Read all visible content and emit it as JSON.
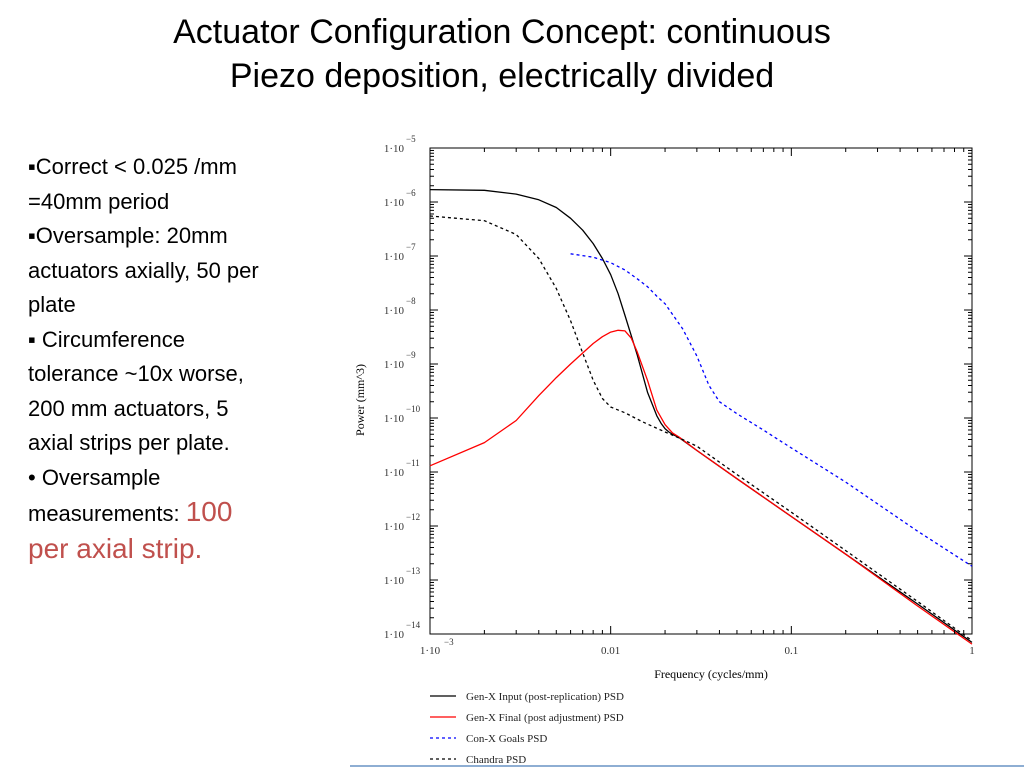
{
  "slide": {
    "title_line1": "Actuator Configuration Concept: continuous",
    "title_line2": "Piezo deposition, electrically divided",
    "bullets": {
      "b1_line1": "▪Correct < 0.025 /mm",
      "b1_line2": "=40mm period",
      "b2_line1": "▪Oversample: 20mm",
      "b2_line2": "actuators axially, 50 per",
      "b2_line3": "plate",
      "b3_line1": "▪ Circumference",
      "b3_line2": "tolerance ~10x worse,",
      "b3_line3": "200 mm actuators, 5",
      "b3_line4": "axial strips per plate.",
      "b4_line1": "• Oversample",
      "b4_line2_prefix": "measurements: ",
      "b4_line2_highlight": "100",
      "b4_line3": "per axial strip."
    },
    "highlight_color": "#c0504d"
  },
  "chart_data": {
    "type": "line",
    "x_scale": "log",
    "y_scale": "log",
    "xlim": [
      0.001,
      1
    ],
    "ylim": [
      1e-14,
      1e-05
    ],
    "xlabel": "Frequency (cycles/mm)",
    "ylabel": "Power (mm^3)",
    "x_ticks": [
      {
        "base": "1·10",
        "exp": "−3"
      },
      {
        "label": "0.01"
      },
      {
        "label": "0.1"
      },
      {
        "label": "1"
      }
    ],
    "y_ticks": [
      {
        "base": "1·10",
        "exp": "−5"
      },
      {
        "base": "1·10",
        "exp": "−6"
      },
      {
        "base": "1·10",
        "exp": "−7"
      },
      {
        "base": "1·10",
        "exp": "−8"
      },
      {
        "base": "1·10",
        "exp": "−9"
      },
      {
        "base": "1·10",
        "exp": "−10"
      },
      {
        "base": "1·10",
        "exp": "−11"
      },
      {
        "base": "1·10",
        "exp": "−12"
      },
      {
        "base": "1·10",
        "exp": "−13"
      },
      {
        "base": "1·10",
        "exp": "−14"
      }
    ],
    "series": [
      {
        "name": "Gen-X Input (post-replication) PSD",
        "color": "#000000",
        "dash": "solid",
        "x": [
          0.001,
          0.002,
          0.003,
          0.004,
          0.005,
          0.006,
          0.007,
          0.008,
          0.009,
          0.01,
          0.011,
          0.012,
          0.014,
          0.016,
          0.018,
          0.019,
          0.02,
          0.021,
          0.022,
          0.024,
          0.03,
          0.05,
          0.1,
          0.2,
          0.5,
          1
        ],
        "y": [
          1.7e-06,
          1.65e-06,
          1.4e-06,
          1.1e-06,
          7.9e-07,
          5e-07,
          3e-07,
          1.7e-07,
          9e-08,
          4.5e-08,
          2e-08,
          7.9e-09,
          1.5e-09,
          3e-10,
          1.1e-10,
          8e-11,
          6.3e-11,
          5.5e-11,
          5e-11,
          4.3e-11,
          2.5e-11,
          7.5e-12,
          1.5e-12,
          3e-13,
          3.6e-14,
          7e-15
        ]
      },
      {
        "name": "Gen-X Final (post adjustment) PSD",
        "color": "#ff0000",
        "dash": "solid",
        "x": [
          0.001,
          0.002,
          0.003,
          0.004,
          0.005,
          0.006,
          0.007,
          0.008,
          0.009,
          0.01,
          0.011,
          0.012,
          0.013,
          0.014,
          0.016,
          0.018,
          0.02,
          0.022,
          0.024,
          0.03,
          0.05,
          0.1,
          0.2,
          0.5,
          1
        ],
        "y": [
          1.3e-11,
          3.5e-11,
          9e-11,
          2.6e-10,
          5.6e-10,
          1e-09,
          1.6e-09,
          2.4e-09,
          3.2e-09,
          3.9e-09,
          4.2e-09,
          4.1e-09,
          3e-09,
          1.7e-09,
          5e-10,
          1.4e-10,
          7.5e-11,
          5.3e-11,
          4.4e-11,
          2.5e-11,
          7.5e-12,
          1.5e-12,
          3e-13,
          3.3e-14,
          6.5e-15
        ]
      },
      {
        "name": "Con-X Goals PSD",
        "color": "#0000ff",
        "dash": "dashed",
        "x": [
          0.006,
          0.008,
          0.01,
          0.012,
          0.014,
          0.016,
          0.018,
          0.02,
          0.025,
          0.03,
          0.035,
          0.04,
          0.05,
          0.07,
          0.1,
          0.2,
          0.5,
          1
        ],
        "y": [
          1.1e-07,
          9.5e-08,
          7.5e-08,
          5.5e-08,
          3.8e-08,
          2.7e-08,
          1.8e-08,
          1.3e-08,
          4.5e-09,
          1.4e-09,
          4e-10,
          2e-10,
          1.2e-10,
          6e-11,
          2.8e-11,
          6.5e-12,
          8e-13,
          1.8e-13
        ]
      },
      {
        "name": "Chandra PSD",
        "color": "#000000",
        "dash": "dashed",
        "x": [
          0.001,
          0.002,
          0.003,
          0.004,
          0.005,
          0.006,
          0.007,
          0.008,
          0.009,
          0.01,
          0.012,
          0.015,
          0.02,
          0.025,
          0.03,
          0.05,
          0.1,
          0.2,
          0.5,
          1
        ],
        "y": [
          5.5e-07,
          4.5e-07,
          2.5e-07,
          9e-08,
          2.5e-08,
          6.3e-09,
          1.6e-09,
          5e-10,
          2.3e-10,
          1.6e-10,
          1.25e-10,
          8.5e-11,
          5.5e-11,
          4e-11,
          3e-11,
          9e-12,
          1.8e-12,
          3.5e-13,
          4e-14,
          7.5e-15
        ]
      }
    ],
    "legend_position": "bottom-left"
  }
}
